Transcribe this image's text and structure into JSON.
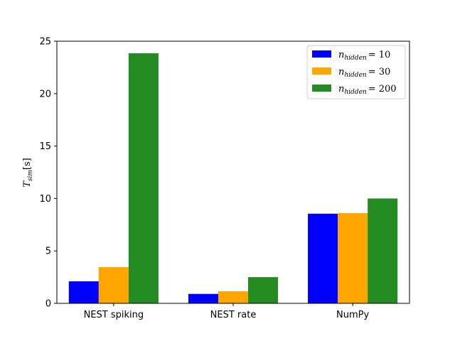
{
  "chart_data": {
    "type": "bar",
    "categories": [
      "NEST spiking",
      "NEST rate",
      "NumPy"
    ],
    "series": [
      {
        "name": "n_hidden = 10",
        "legend_var": "n",
        "legend_sub": "hidden",
        "legend_value": "= 10",
        "color": "#0000ff",
        "values": [
          2.1,
          0.9,
          8.55
        ]
      },
      {
        "name": "n_hidden = 30",
        "legend_var": "n",
        "legend_sub": "hidden",
        "legend_value": "= 30",
        "color": "#ffa500",
        "values": [
          3.45,
          1.15,
          8.6
        ]
      },
      {
        "name": "n_hidden = 200",
        "legend_var": "n",
        "legend_sub": "hidden",
        "legend_value": "= 200",
        "color": "#228b22",
        "values": [
          23.85,
          2.5,
          10.0
        ]
      }
    ],
    "ylabel_var": "T",
    "ylabel_sub": "sim",
    "ylabel_unit": "[s]",
    "ylim": [
      0,
      25
    ],
    "yticks": [
      "0",
      "5",
      "10",
      "15",
      "20",
      "25"
    ],
    "legend_position": "top-right",
    "grid": false
  }
}
